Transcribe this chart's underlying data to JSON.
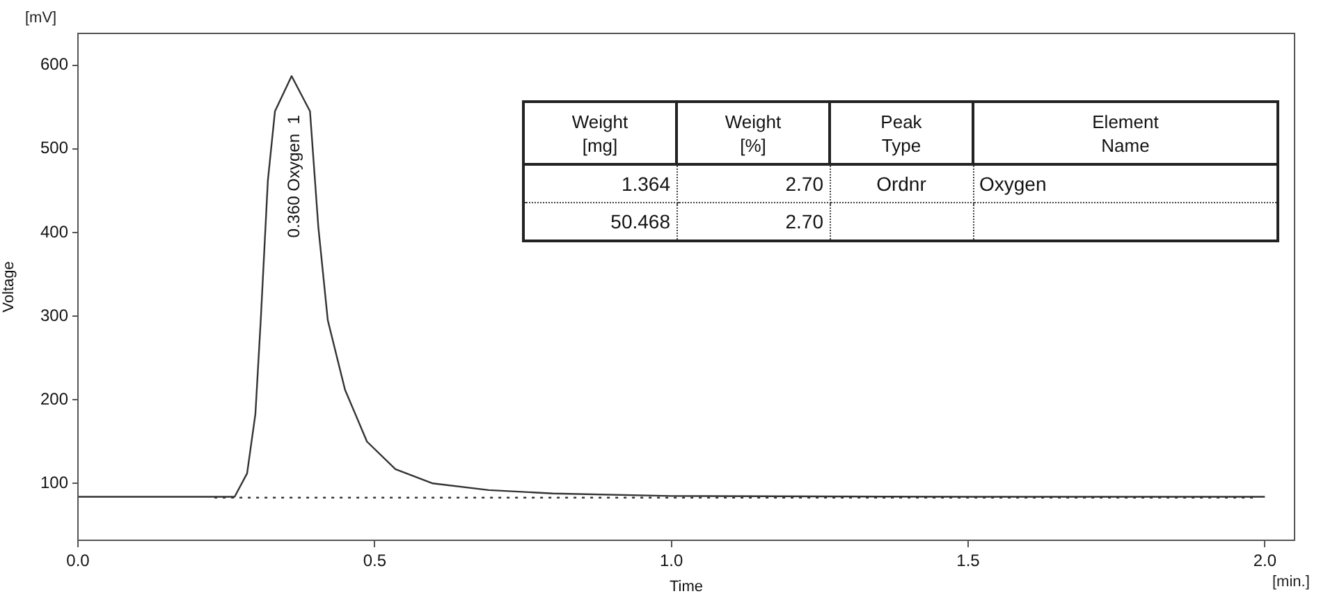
{
  "chart_data": {
    "type": "line",
    "xlabel": "Time",
    "ylabel": "Voltage",
    "xlim": [
      0,
      2.05
    ],
    "ylim": [
      32,
      638
    ],
    "xticks": [
      {
        "value": 0,
        "label": "0.0"
      },
      0.5,
      {
        "value": 1,
        "label": "1.0"
      },
      1.5,
      {
        "value": 2,
        "label": "2.0"
      }
    ],
    "yticks": [
      100,
      200,
      300,
      400,
      500,
      600
    ],
    "grid": false,
    "legend": false,
    "marker": "none",
    "series": [
      {
        "color": "#333333",
        "line_style": "solid",
        "x": [
          0,
          0.2,
          0.264,
          0.285,
          0.299,
          0.308,
          0.32,
          0.332,
          0.36,
          0.391,
          0.405,
          0.421,
          0.45,
          0.487,
          0.535,
          0.598,
          0.692,
          0.8,
          1.0,
          1.5,
          2.0
        ],
        "values": [
          84,
          84,
          84,
          112,
          183,
          295,
          462,
          545,
          587,
          545,
          407,
          295,
          212,
          150,
          117,
          100,
          92,
          88,
          85,
          84,
          84
        ]
      },
      {
        "color": "#333333",
        "line_style": "dotted",
        "x": [
          0.23,
          1.98
        ],
        "values": [
          83,
          83
        ]
      }
    ],
    "annotations": [
      {
        "text": "0.360 Oxygen  1",
        "x": 0.36,
        "y": 587
      },
      "[mV]",
      "[min.]",
      "Weight\n[mg]",
      "Weight\n[%]",
      "Peak\nType",
      "Element\nName",
      "1.364",
      "2.70",
      "Ordnr",
      "Oxygen",
      "50.468",
      "2.70"
    ]
  }
}
